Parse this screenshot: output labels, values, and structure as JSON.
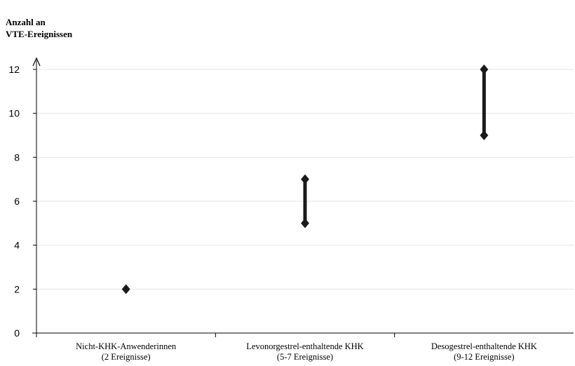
{
  "chart_data": {
    "type": "range",
    "ylabel_lines": [
      "Anzahl an",
      "VTE-Ereignissen"
    ],
    "ylim": [
      0,
      12
    ],
    "yticks": [
      0,
      2,
      4,
      6,
      8,
      10,
      12
    ],
    "grid": true,
    "categories": [
      [
        "Nicht-KHK-Anwenderinnen",
        "(2 Ereignisse)"
      ],
      [
        "Levonorgestrel-enthaltende KHK",
        "(5-7 Ereignisse)"
      ],
      [
        "Desogestrel-enthaltende KHK",
        "(9-12 Ereignisse)"
      ]
    ],
    "ranges": [
      {
        "low": 2,
        "high": 2
      },
      {
        "low": 5,
        "high": 7
      },
      {
        "low": 9,
        "high": 12
      }
    ],
    "colors": {
      "marker": "#1a1a1a",
      "grid": "#e6e6e6",
      "axis": "#000000"
    }
  }
}
